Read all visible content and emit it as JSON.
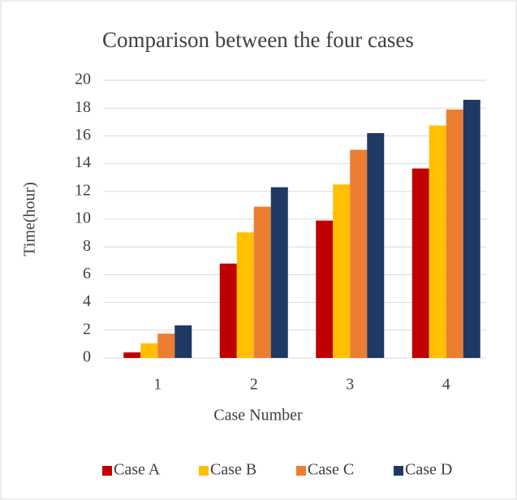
{
  "chart_data": {
    "type": "bar",
    "title": "Comparison between the four cases",
    "x_label": "Case Number",
    "y_label": "Time(hour)",
    "categories": [
      "1",
      "2",
      "3",
      "4"
    ],
    "series": [
      {
        "name": "Case A",
        "color": "#c00000",
        "values": [
          0.4,
          6.8,
          9.9,
          13.65
        ]
      },
      {
        "name": "Case B",
        "color": "#ffc000",
        "values": [
          1.05,
          9.05,
          12.5,
          16.75
        ]
      },
      {
        "name": "Case C",
        "color": "#ed7d31",
        "values": [
          1.75,
          10.9,
          15.0,
          17.9
        ]
      },
      {
        "name": "Case D",
        "color": "#1f3864",
        "values": [
          2.35,
          12.3,
          16.2,
          18.6
        ]
      }
    ],
    "ylim": [
      0,
      20
    ],
    "yticks": [
      0,
      2,
      4,
      6,
      8,
      10,
      12,
      14,
      16,
      18,
      20
    ],
    "grid": true,
    "legend": "bottom"
  }
}
